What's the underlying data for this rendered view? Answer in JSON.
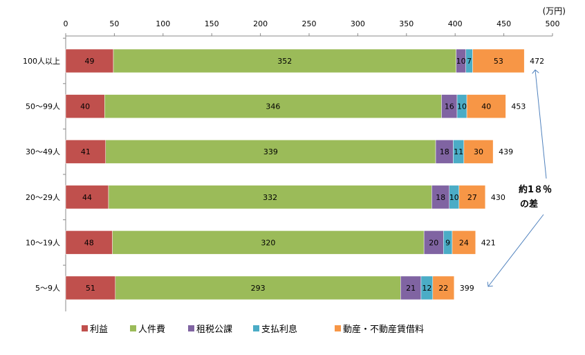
{
  "chart_data": {
    "type": "bar",
    "orientation": "horizontal",
    "stacked": true,
    "unit_label": "(万円)",
    "xlim": [
      0,
      500
    ],
    "xticks": [
      0,
      50,
      100,
      150,
      200,
      250,
      300,
      350,
      400,
      450,
      500
    ],
    "categories": [
      "100人以上",
      "50～99人",
      "30～49人",
      "20～29人",
      "10～19人",
      "5～9人"
    ],
    "series": [
      {
        "name": "利益",
        "color": "#C0504D",
        "values": [
          49,
          40,
          41,
          44,
          48,
          51
        ]
      },
      {
        "name": "人件費",
        "color": "#9BBB59",
        "values": [
          352,
          346,
          339,
          332,
          320,
          293
        ]
      },
      {
        "name": "租税公課",
        "color": "#8064A2",
        "values": [
          10,
          16,
          18,
          18,
          20,
          21
        ]
      },
      {
        "name": "支払利息",
        "color": "#4BACC6",
        "values": [
          7,
          10,
          11,
          10,
          9,
          12
        ]
      },
      {
        "name": "動産・不動産賃借料",
        "color": "#F79646",
        "values": [
          53,
          40,
          30,
          27,
          24,
          22
        ]
      }
    ],
    "totals": [
      472,
      453,
      439,
      430,
      421,
      399
    ],
    "annotation": {
      "line1": "約1８％",
      "line2": "の差"
    },
    "legend_position": "bottom"
  }
}
